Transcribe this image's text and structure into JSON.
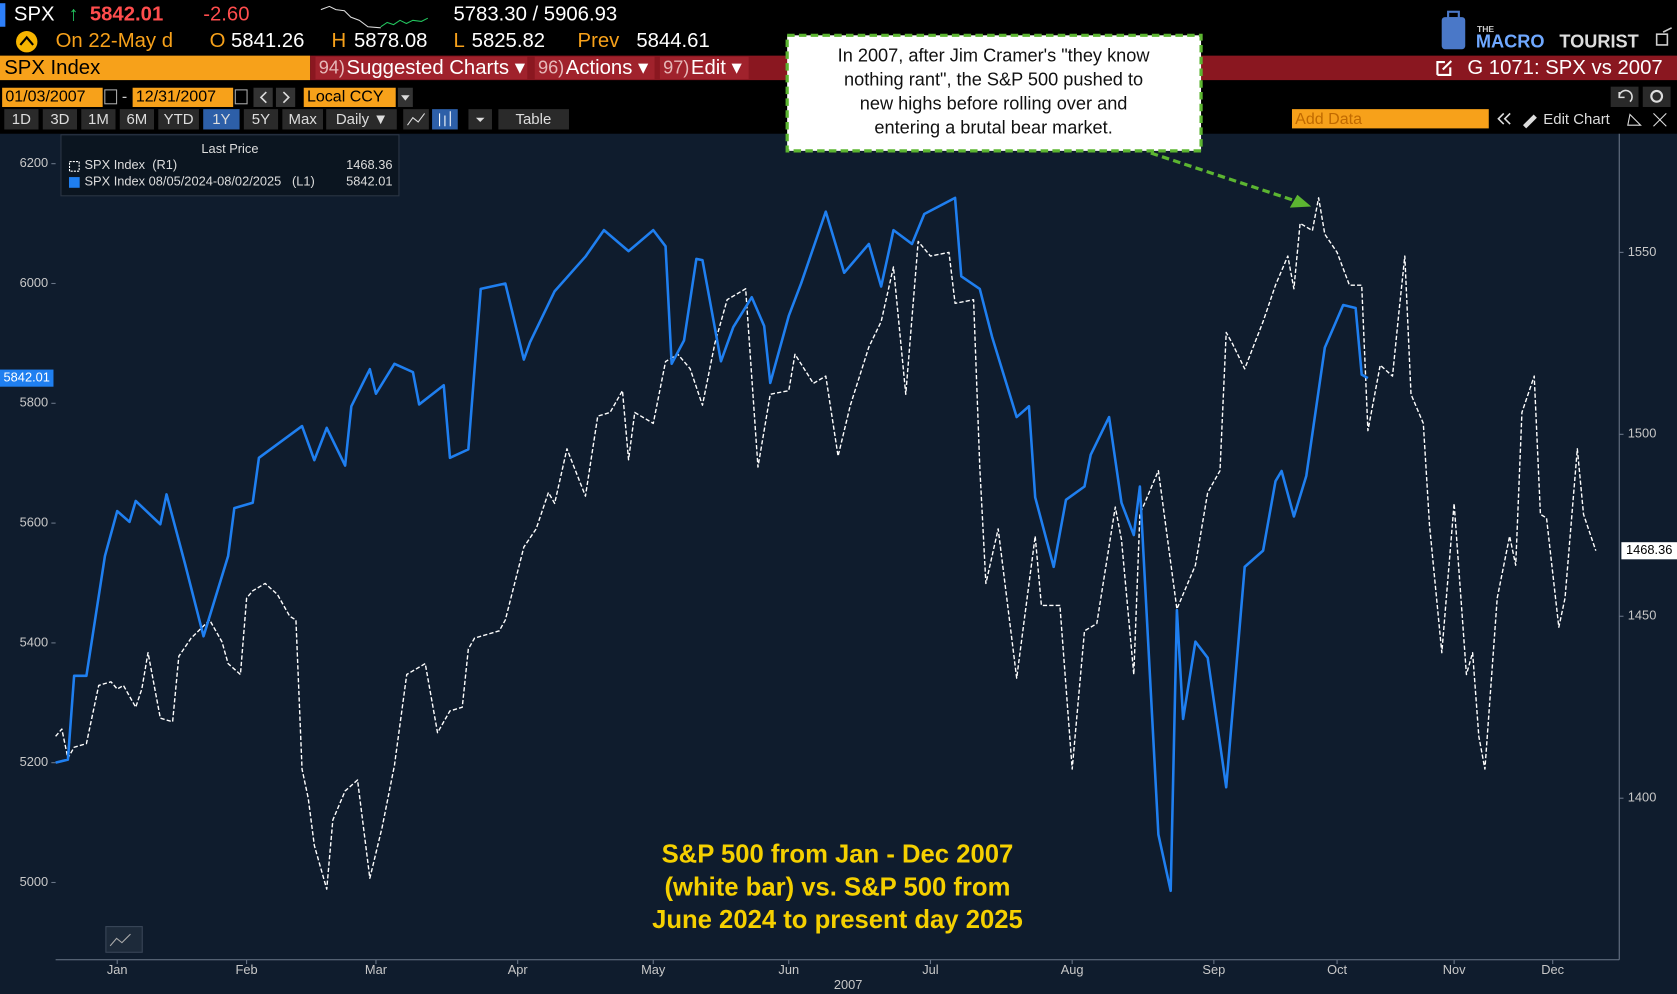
{
  "header": {
    "ticker": "SPX",
    "arrow": "↑",
    "last": "5842.01",
    "change": "-2.60",
    "range": "5783.30 / 5906.93",
    "date": "On 22-May d",
    "open_label": "O",
    "open": "5841.26",
    "high_label": "H",
    "high": "5878.08",
    "low_label": "L",
    "low": "5825.82",
    "prev_label": "Prev",
    "prev": "5844.61",
    "logo_small": "THE",
    "logo_a": "MACRO",
    "logo_b": "TOURIST"
  },
  "menu": {
    "security": "SPX Index",
    "items": [
      {
        "num": "94)",
        "label": "Suggested Charts ▾"
      },
      {
        "num": "96)",
        "label": "Actions ▾"
      },
      {
        "num": "97)",
        "label": "Edit ▾"
      }
    ],
    "page": "G 1071: SPX vs 2007"
  },
  "controls": {
    "start": "01/03/2007",
    "dash": "-",
    "end": "12/31/2007",
    "currency": "Local CCY",
    "periods": [
      "1D",
      "3D",
      "1M",
      "6M",
      "YTD",
      "1Y",
      "5Y",
      "Max"
    ],
    "active_period": "1Y",
    "frequency": "Daily ▼",
    "table": "Table",
    "add_data": "Add Data",
    "edit_chart": "Edit Chart"
  },
  "chart_data": {
    "type": "line",
    "legend_title": "Last Price",
    "x_label": "2007",
    "xlim": [
      0,
      253.8
    ],
    "xticks": [
      {
        "value": 10,
        "label": "Jan"
      },
      {
        "value": 31,
        "label": "Feb"
      },
      {
        "value": 52,
        "label": "Mar"
      },
      {
        "value": 75,
        "label": "Apr"
      },
      {
        "value": 97,
        "label": "May"
      },
      {
        "value": 119,
        "label": "Jun"
      },
      {
        "value": 142,
        "label": "Jul"
      },
      {
        "value": 165,
        "label": "Aug"
      },
      {
        "value": 188,
        "label": "Sep"
      },
      {
        "value": 208,
        "label": "Oct"
      },
      {
        "value": 227,
        "label": "Nov"
      },
      {
        "value": 243,
        "label": "Dec"
      }
    ],
    "ylim": [
      4871,
      6250
    ],
    "yticks": [
      5000,
      5200,
      5400,
      5600,
      5800,
      6000,
      6200
    ],
    "y2lim": [
      1355.6,
      1582.6
    ],
    "y2ticks": [
      1400,
      1450,
      1500,
      1550
    ],
    "grid": false,
    "series": [
      {
        "name": "SPX Index  (R1)",
        "legend_value": "1468.36",
        "last_label": "1468.36",
        "color": "#ffffff",
        "dashed": true,
        "axis": "y2",
        "x": [
          0,
          1,
          2,
          3,
          5,
          7,
          9,
          10,
          11,
          13,
          14,
          15,
          17,
          19,
          20,
          22,
          25,
          27,
          28,
          30,
          31,
          32,
          34,
          36,
          38,
          39,
          40,
          41,
          42,
          44,
          45,
          47,
          49,
          51,
          53,
          55,
          57,
          60,
          62,
          64,
          66,
          67,
          68,
          72,
          73,
          76,
          78,
          80,
          81,
          83,
          86,
          88,
          90,
          92,
          93,
          94,
          97,
          99,
          101,
          103,
          105,
          107,
          109,
          112,
          114,
          116,
          119,
          120,
          123,
          125,
          127,
          129,
          132,
          134,
          136,
          138,
          140,
          142,
          145,
          146,
          149,
          150,
          151,
          153,
          156,
          159,
          160,
          163,
          165,
          167,
          169,
          172,
          173,
          175,
          176,
          179,
          182,
          185,
          187,
          189,
          190,
          191,
          193,
          196,
          198,
          200,
          201,
          202,
          204,
          205,
          206,
          208,
          210,
          212,
          213,
          215,
          217,
          218,
          219,
          220,
          222,
          223,
          225,
          227,
          229,
          230,
          231,
          232,
          234,
          236,
          237,
          238,
          240,
          241,
          242,
          244,
          245,
          247,
          248,
          250
        ],
        "values": [
          1417,
          1419,
          1411,
          1414,
          1415,
          1431,
          1432,
          1430,
          1431,
          1425,
          1430,
          1440,
          1422,
          1421,
          1439,
          1444,
          1449,
          1443,
          1437,
          1434,
          1455,
          1457,
          1459,
          1456,
          1450,
          1449,
          1408,
          1400,
          1387,
          1375,
          1394,
          1402,
          1405,
          1378,
          1392,
          1409,
          1434,
          1437,
          1418,
          1424,
          1425,
          1441,
          1444,
          1446,
          1449,
          1469,
          1474,
          1484,
          1481,
          1496,
          1483,
          1505,
          1506,
          1512,
          1493,
          1506,
          1503,
          1520,
          1522,
          1518,
          1508,
          1525,
          1537,
          1540,
          1491,
          1511,
          1512,
          1522,
          1514,
          1516,
          1494,
          1508,
          1524,
          1531,
          1546,
          1511,
          1553,
          1549,
          1550,
          1536,
          1537,
          1491,
          1459,
          1474,
          1433,
          1472,
          1453,
          1453,
          1408,
          1446,
          1448,
          1480,
          1471,
          1434,
          1478,
          1490,
          1452,
          1464,
          1484,
          1490,
          1528,
          1525,
          1518,
          1531,
          1541,
          1549,
          1540,
          1558,
          1556,
          1565,
          1555,
          1550,
          1541,
          1541,
          1501,
          1519,
          1516,
          1533,
          1549,
          1511,
          1503,
          1475,
          1440,
          1481,
          1434,
          1440,
          1417,
          1408,
          1455,
          1472,
          1464,
          1506,
          1516,
          1478,
          1477,
          1447,
          1455,
          1496,
          1478,
          1468
        ]
      },
      {
        "name": "SPX Index 08/05/2024-08/02/2025   (L1)",
        "legend_value": "5842.01",
        "last_label": "5842.01",
        "color": "#1f7ff0",
        "dashed": false,
        "axis": "y",
        "x": [
          0,
          2,
          3,
          5,
          8,
          10,
          12,
          13,
          17,
          18,
          21,
          24,
          28,
          29,
          32,
          33,
          40,
          42,
          44,
          47,
          48,
          51,
          52,
          55,
          58,
          59,
          63,
          64,
          67,
          69,
          73,
          76,
          77,
          81,
          86,
          89,
          93,
          97,
          99,
          100,
          102,
          104,
          105,
          108,
          110,
          113,
          115,
          116,
          119,
          121,
          125,
          128,
          132,
          134,
          136,
          139,
          141,
          146,
          147,
          150,
          152,
          156,
          158,
          159,
          162,
          164,
          167,
          168,
          171,
          173,
          175,
          176,
          179,
          181,
          182,
          183,
          185,
          187,
          190,
          193,
          196,
          198,
          199,
          201,
          203,
          206,
          209,
          211,
          212,
          213
        ],
        "values": [
          5200,
          5205,
          5345,
          5345,
          5545,
          5620,
          5602,
          5637,
          5598,
          5648,
          5532,
          5411,
          5545,
          5625,
          5634,
          5709,
          5762,
          5705,
          5759,
          5696,
          5795,
          5857,
          5816,
          5866,
          5852,
          5798,
          5830,
          5709,
          5723,
          5991,
          6000,
          5873,
          5902,
          5987,
          6045,
          6089,
          6054,
          6089,
          6062,
          5866,
          5905,
          6041,
          6039,
          5870,
          5927,
          5977,
          5929,
          5834,
          5946,
          6000,
          6120,
          6018,
          6066,
          5995,
          6089,
          6066,
          6116,
          6143,
          6012,
          5991,
          5911,
          5777,
          5795,
          5643,
          5527,
          5639,
          5661,
          5714,
          5777,
          5634,
          5580,
          5661,
          5080,
          4986,
          5455,
          5273,
          5402,
          5375,
          5159,
          5527,
          5554,
          5670,
          5687,
          5611,
          5679,
          5893,
          5964,
          5959,
          5848,
          5842
        ]
      }
    ],
    "annotation_lines": [
      "In 2007, after Jim Cramer's \"they know",
      "nothing rant\", the S&P 500 pushed to",
      "new highs before rolling over and",
      "entering a brutal bear market."
    ],
    "caption_lines": [
      "S&P 500 from Jan - Dec 2007",
      "(white bar) vs. S&P 500 from",
      "June 2024 to present day 2025"
    ]
  }
}
